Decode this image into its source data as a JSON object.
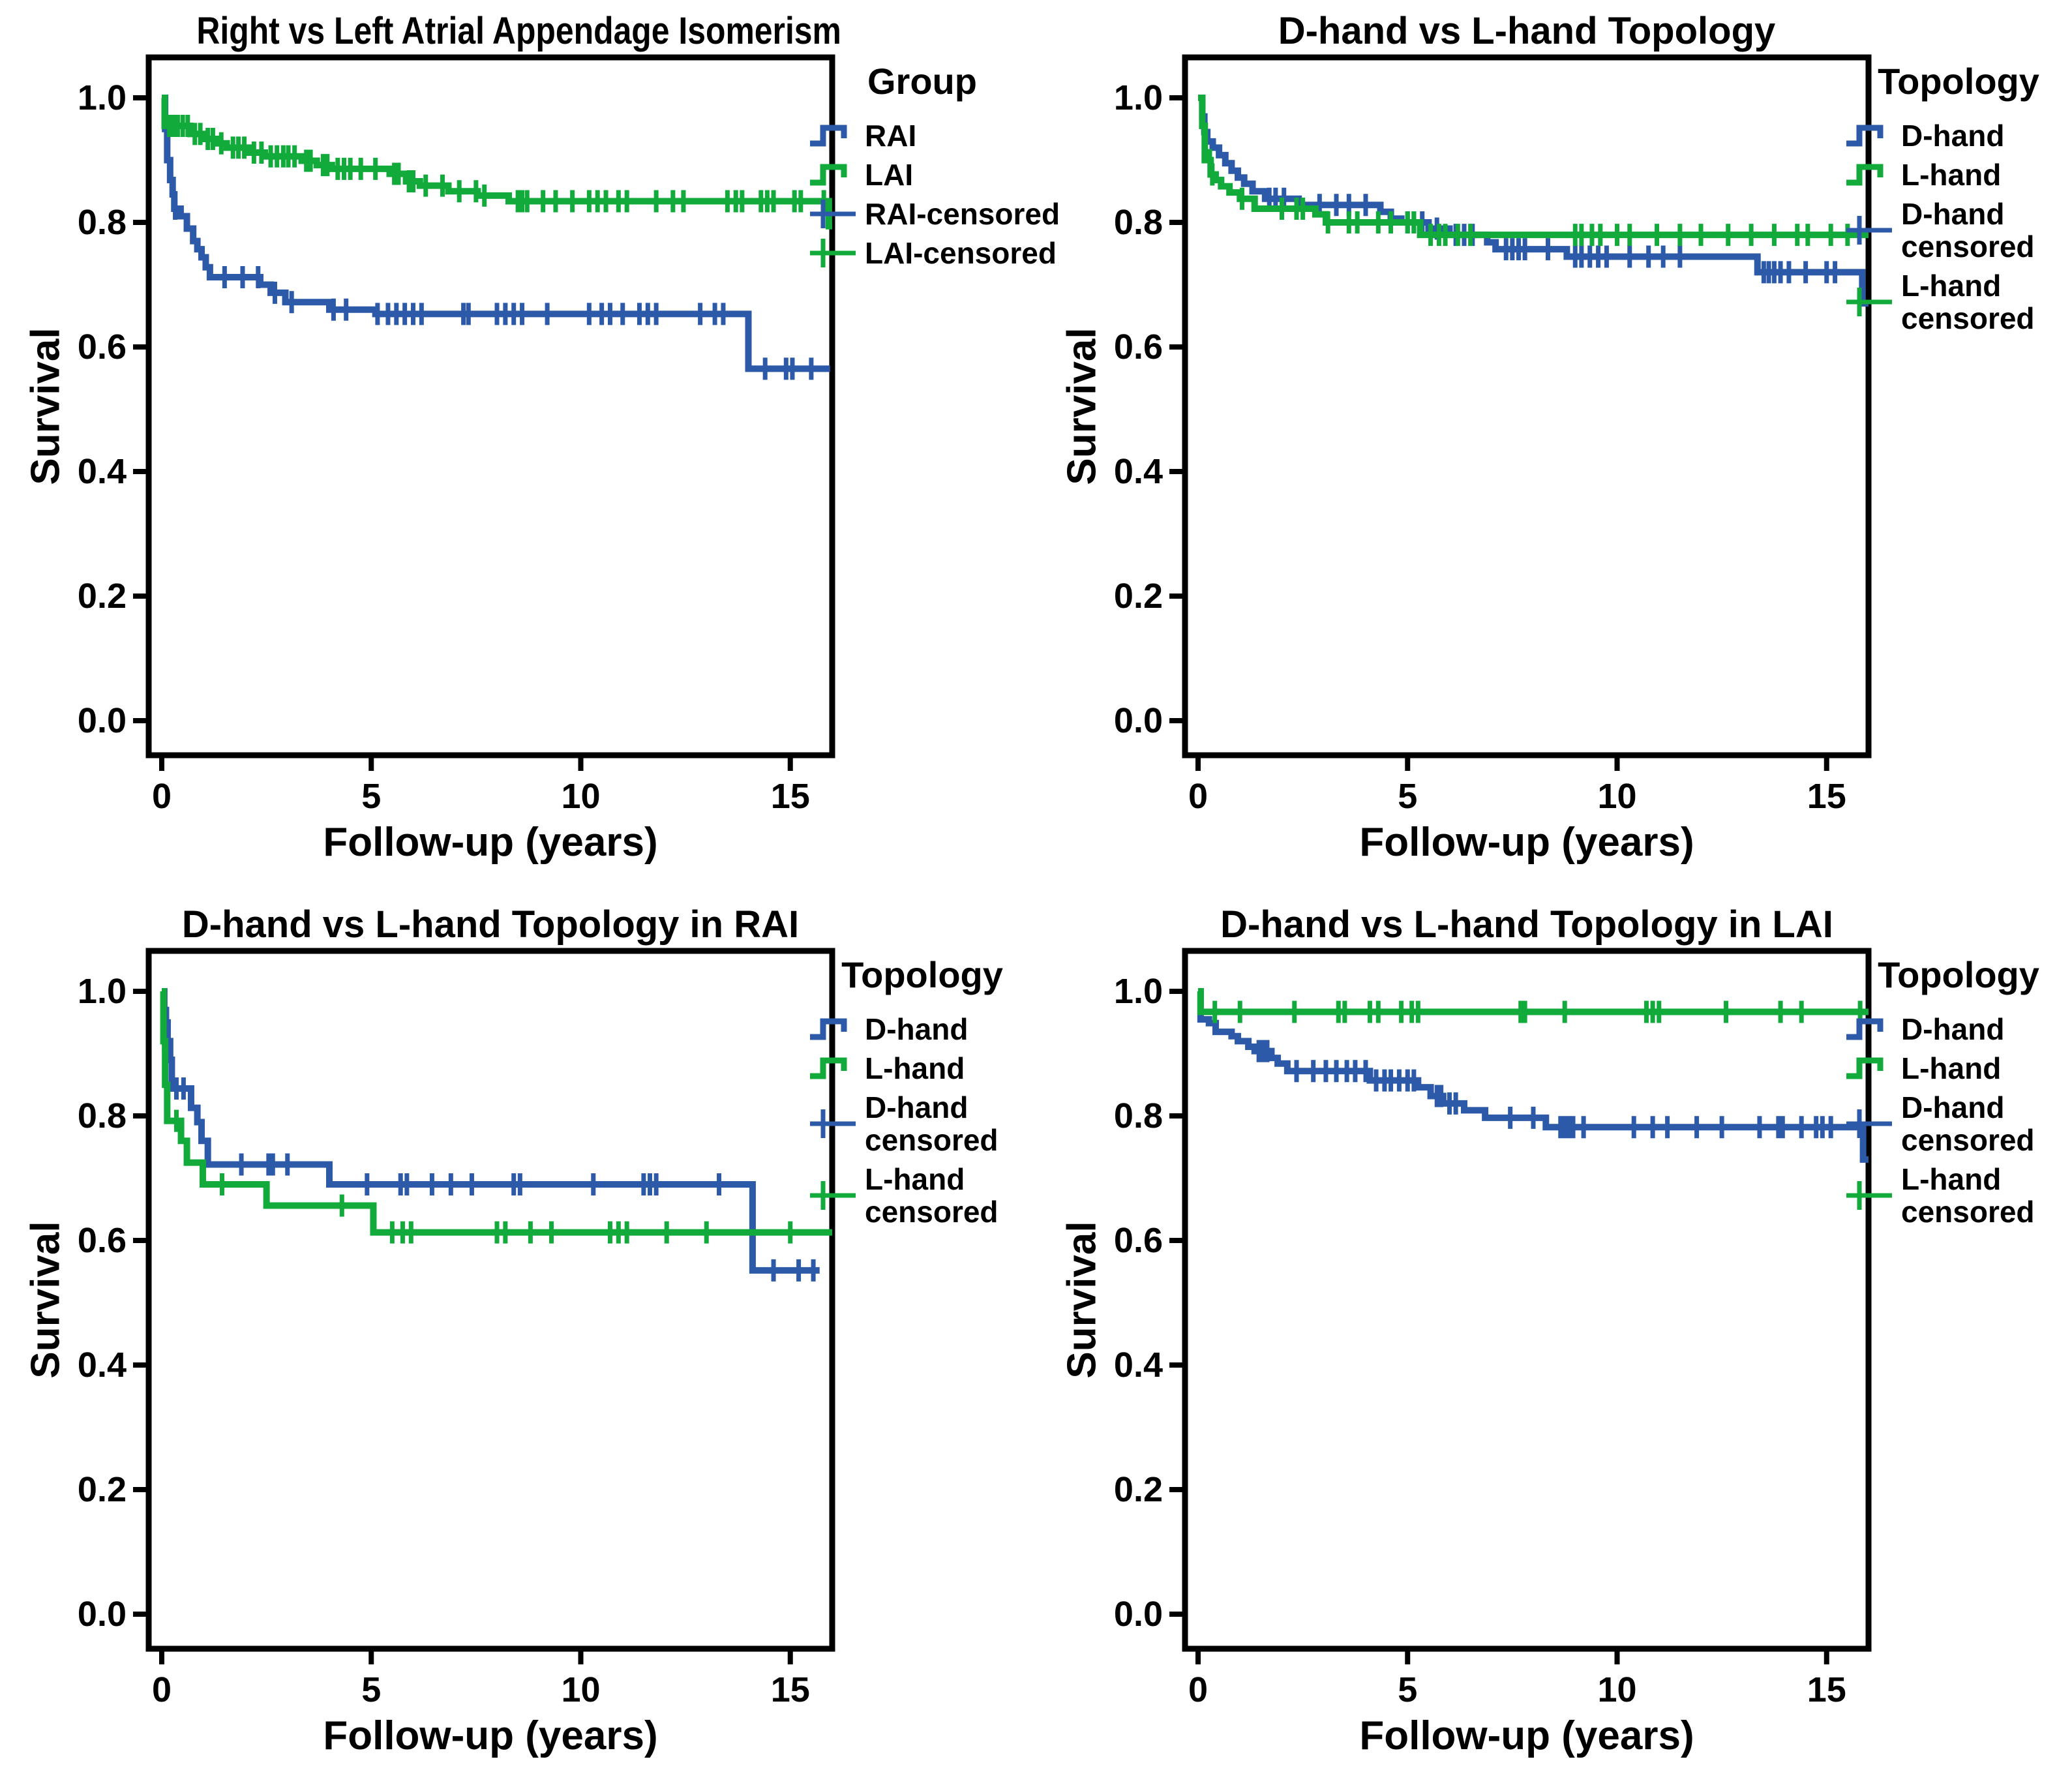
{
  "figure_background": "#ffffff",
  "colors": {
    "blue": "#2D5AA8",
    "green": "#11AA3B",
    "axis": "#000000"
  },
  "chart_data": [
    {
      "type": "line",
      "subtype": "kaplan-meier-step-survival",
      "title": "Right vs Left Atrial Appendage Isomerism",
      "xlabel": "Follow-up (years)",
      "ylabel": "Survival",
      "xlim": [
        0,
        16
      ],
      "ylim": [
        0,
        1.0
      ],
      "xticks": [
        0,
        5,
        10,
        15
      ],
      "xtick_labels": [
        "0",
        "5",
        "10",
        "15"
      ],
      "yticks": [
        1.0,
        0.8,
        0.6,
        0.4,
        0.2,
        0.0
      ],
      "ytick_labels": [
        "1.0",
        "0.8",
        "0.6",
        "0.4",
        "0.2",
        "0.0"
      ],
      "legend_title": "Group",
      "legend_position": "right",
      "grid": false,
      "legend": [
        {
          "label": "RAI",
          "label2": "",
          "marker": "step",
          "color": "#2D5AA8"
        },
        {
          "label": "LAI",
          "label2": "",
          "marker": "step",
          "color": "#11AA3B"
        },
        {
          "label": "RAI-censored",
          "label2": "",
          "marker": "censor",
          "color": "#2D5AA8"
        },
        {
          "label": "LAI-censored",
          "label2": "",
          "marker": "censor",
          "color": "#11AA3B"
        }
      ],
      "series": [
        {
          "name": "RAI",
          "color": "#2D5AA8",
          "x": [
            0,
            0.08,
            0.13,
            0.2,
            0.26,
            0.3,
            0.45,
            0.6,
            0.75,
            0.85,
            0.95,
            1.05,
            1.15,
            2.35,
            2.6,
            2.95,
            4.0,
            5.1,
            14.0
          ],
          "y": [
            1.0,
            0.95,
            0.9,
            0.868,
            0.845,
            0.822,
            0.81,
            0.79,
            0.77,
            0.757,
            0.744,
            0.728,
            0.712,
            0.7,
            0.687,
            0.672,
            0.66,
            0.653,
            0.565
          ],
          "end_x": 15.95,
          "censor_x": [
            0.32,
            1.5,
            1.93,
            2.3,
            2.7,
            3.1,
            4.1,
            4.4,
            5.15,
            5.4,
            5.6,
            5.8,
            6.0,
            6.2,
            7.2,
            7.32,
            8.0,
            8.2,
            8.4,
            8.6,
            9.2,
            10.2,
            10.5,
            10.7,
            11.0,
            11.4,
            11.6,
            11.8,
            12.85,
            13.2,
            13.4,
            14.4,
            14.9,
            15.05,
            15.5
          ]
        },
        {
          "name": "LAI",
          "color": "#11AA3B",
          "x": [
            0,
            0.07,
            0.68,
            1.02,
            1.31,
            1.55,
            2.1,
            2.46,
            3.34,
            3.7,
            4.06,
            5.44,
            5.83,
            6.16,
            6.84,
            7.54,
            8.28,
            15.92
          ],
          "y": [
            1.0,
            0.955,
            0.942,
            0.934,
            0.927,
            0.92,
            0.912,
            0.906,
            0.899,
            0.892,
            0.886,
            0.878,
            0.866,
            0.859,
            0.85,
            0.843,
            0.834,
            0.794
          ],
          "end_x": 16.0,
          "censor_x": [
            0.18,
            0.28,
            0.38,
            0.5,
            0.62,
            0.79,
            0.92,
            1.1,
            1.22,
            1.42,
            1.7,
            1.83,
            1.97,
            2.2,
            2.38,
            2.6,
            2.75,
            2.9,
            3.02,
            3.17,
            3.45,
            3.55,
            3.85,
            3.95,
            4.2,
            4.35,
            4.5,
            4.75,
            5.1,
            5.55,
            5.65,
            5.9,
            6.0,
            6.3,
            6.7,
            7.1,
            7.5,
            7.7,
            8.5,
            8.6,
            8.72,
            9.1,
            9.4,
            9.8,
            10.2,
            10.4,
            10.6,
            10.9,
            11.1,
            11.8,
            12.2,
            12.45,
            13.5,
            13.7,
            13.85,
            14.3,
            14.45,
            14.6,
            15.1,
            15.25,
            15.8
          ]
        }
      ]
    },
    {
      "type": "line",
      "subtype": "kaplan-meier-step-survival",
      "title": "D-hand vs L-hand Topology",
      "xlabel": "Follow-up (years)",
      "ylabel": "Survival",
      "xlim": [
        0,
        16
      ],
      "ylim": [
        0,
        1.0
      ],
      "xticks": [
        0,
        5,
        10,
        15
      ],
      "xtick_labels": [
        "0",
        "5",
        "10",
        "15"
      ],
      "yticks": [
        1.0,
        0.8,
        0.6,
        0.4,
        0.2,
        0.0
      ],
      "ytick_labels": [
        "1.0",
        "0.8",
        "0.6",
        "0.4",
        "0.2",
        "0.0"
      ],
      "legend_title": "Topology",
      "legend_position": "right",
      "grid": false,
      "legend": [
        {
          "label": "D-hand",
          "label2": "",
          "marker": "step",
          "color": "#2D5AA8"
        },
        {
          "label": "L-hand",
          "label2": "",
          "marker": "step",
          "color": "#11AA3B"
        },
        {
          "label": "D-hand",
          "label2": "censored",
          "marker": "censor",
          "color": "#2D5AA8"
        },
        {
          "label": "L-hand",
          "label2": "censored",
          "marker": "censor",
          "color": "#11AA3B"
        }
      ],
      "series": [
        {
          "name": "D-hand",
          "color": "#2D5AA8",
          "x": [
            0,
            0.1,
            0.15,
            0.22,
            0.35,
            0.5,
            0.65,
            0.8,
            0.95,
            1.1,
            1.3,
            1.6,
            2.4,
            4.35,
            4.6,
            4.85,
            5.5,
            6.0,
            6.9,
            7.1,
            8.8,
            13.35,
            15.85
          ],
          "y": [
            1.0,
            0.97,
            0.945,
            0.93,
            0.92,
            0.908,
            0.895,
            0.883,
            0.872,
            0.862,
            0.85,
            0.838,
            0.828,
            0.817,
            0.806,
            0.8,
            0.79,
            0.78,
            0.768,
            0.757,
            0.745,
            0.72,
            0.67
          ],
          "end_x": 16.0,
          "censor_x": [
            1.7,
            1.85,
            2.05,
            2.9,
            3.3,
            3.6,
            4.0,
            5.0,
            5.15,
            5.35,
            5.7,
            6.15,
            6.35,
            6.55,
            7.35,
            7.5,
            7.65,
            7.8,
            8.35,
            9.0,
            9.15,
            9.35,
            9.55,
            9.75,
            10.3,
            10.75,
            11.1,
            11.5,
            13.5,
            13.62,
            13.75,
            13.9,
            14.1,
            14.5,
            15.0,
            15.2
          ]
        },
        {
          "name": "L-hand",
          "color": "#11AA3B",
          "x": [
            0,
            0.1,
            0.16,
            0.3,
            0.42,
            0.55,
            0.75,
            1.0,
            1.35,
            2.8,
            3.05,
            5.3
          ],
          "y": [
            1.0,
            0.955,
            0.9,
            0.877,
            0.868,
            0.858,
            0.848,
            0.838,
            0.822,
            0.813,
            0.8,
            0.78
          ],
          "end_x": 16.0,
          "censor_x": [
            0.28,
            0.34,
            1.05,
            2.0,
            2.35,
            2.5,
            3.1,
            3.6,
            3.8,
            4.3,
            4.6,
            5.0,
            5.15,
            5.55,
            5.75,
            5.9,
            6.2,
            6.5,
            9.0,
            9.15,
            9.4,
            9.6,
            10.0,
            10.3,
            10.95,
            11.5,
            12.0,
            12.65,
            13.2,
            13.75,
            14.3,
            14.55,
            15.1,
            15.5
          ]
        }
      ]
    },
    {
      "type": "line",
      "subtype": "kaplan-meier-step-survival",
      "title": "D-hand vs L-hand Topology in RAI",
      "xlabel": "Follow-up (years)",
      "ylabel": "Survival",
      "xlim": [
        0,
        16
      ],
      "ylim": [
        0,
        1.0
      ],
      "xticks": [
        0,
        5,
        10,
        15
      ],
      "xtick_labels": [
        "0",
        "5",
        "10",
        "15"
      ],
      "yticks": [
        1.0,
        0.8,
        0.6,
        0.4,
        0.2,
        0.0
      ],
      "ytick_labels": [
        "1.0",
        "0.8",
        "0.6",
        "0.4",
        "0.2",
        "0.0"
      ],
      "legend_title": "Topology",
      "legend_position": "right",
      "grid": false,
      "legend": [
        {
          "label": "D-hand",
          "label2": "",
          "marker": "step",
          "color": "#2D5AA8"
        },
        {
          "label": "L-hand",
          "label2": "",
          "marker": "step",
          "color": "#11AA3B"
        },
        {
          "label": "D-hand",
          "label2": "censored",
          "marker": "censor",
          "color": "#2D5AA8"
        },
        {
          "label": "L-hand",
          "label2": "censored",
          "marker": "censor",
          "color": "#11AA3B"
        }
      ],
      "series": [
        {
          "name": "D-hand",
          "color": "#2D5AA8",
          "x": [
            0,
            0.06,
            0.1,
            0.14,
            0.2,
            0.24,
            0.7,
            0.85,
            0.95,
            1.1,
            4.0,
            14.1
          ],
          "y": [
            1.0,
            0.97,
            0.95,
            0.92,
            0.89,
            0.844,
            0.813,
            0.79,
            0.76,
            0.722,
            0.69,
            0.552
          ],
          "end_x": 15.7,
          "censor_x": [
            0.35,
            0.52,
            1.9,
            2.55,
            2.65,
            3.0,
            4.9,
            5.7,
            5.85,
            6.45,
            6.9,
            7.4,
            8.4,
            8.55,
            10.3,
            11.5,
            11.65,
            11.8,
            13.3,
            14.6,
            15.2,
            15.55
          ]
        },
        {
          "name": "L-hand",
          "color": "#11AA3B",
          "x": [
            0,
            0.04,
            0.08,
            0.13,
            0.46,
            0.6,
            0.98,
            2.5,
            5.05
          ],
          "y": [
            1.0,
            0.92,
            0.85,
            0.792,
            0.76,
            0.725,
            0.69,
            0.656,
            0.613
          ],
          "end_x": 16.0,
          "censor_x": [
            0.06,
            0.35,
            1.44,
            4.3,
            5.5,
            5.75,
            5.95,
            8.0,
            8.2,
            8.8,
            9.3,
            10.7,
            10.9,
            11.1,
            12.05,
            13.0,
            15.0
          ]
        }
      ]
    },
    {
      "type": "line",
      "subtype": "kaplan-meier-step-survival",
      "title": "D-hand vs L-hand Topology in LAI",
      "xlabel": "Follow-up (years)",
      "ylabel": "Survival",
      "xlim": [
        0,
        16
      ],
      "ylim": [
        0,
        1.0
      ],
      "xticks": [
        0,
        5,
        10,
        15
      ],
      "xtick_labels": [
        "0",
        "5",
        "10",
        "15"
      ],
      "yticks": [
        1.0,
        0.8,
        0.6,
        0.4,
        0.2,
        0.0
      ],
      "ytick_labels": [
        "1.0",
        "0.8",
        "0.6",
        "0.4",
        "0.2",
        "0.0"
      ],
      "legend_title": "Topology",
      "legend_position": "right",
      "grid": false,
      "legend": [
        {
          "label": "D-hand",
          "label2": "",
          "marker": "step",
          "color": "#2D5AA8"
        },
        {
          "label": "L-hand",
          "label2": "",
          "marker": "step",
          "color": "#11AA3B"
        },
        {
          "label": "D-hand",
          "label2": "censored",
          "marker": "censor",
          "color": "#2D5AA8"
        },
        {
          "label": "L-hand",
          "label2": "censored",
          "marker": "censor",
          "color": "#11AA3B"
        }
      ],
      "series": [
        {
          "name": "D-hand",
          "color": "#2D5AA8",
          "x": [
            0,
            0.06,
            0.26,
            0.42,
            0.8,
            0.95,
            1.2,
            1.35,
            1.75,
            1.9,
            2.13,
            4.1,
            5.25,
            5.55,
            5.85,
            6.35,
            6.85,
            8.3,
            15.87
          ],
          "y": [
            1.0,
            0.955,
            0.949,
            0.935,
            0.928,
            0.92,
            0.911,
            0.904,
            0.893,
            0.884,
            0.872,
            0.857,
            0.846,
            0.832,
            0.82,
            0.809,
            0.797,
            0.782,
            0.73
          ],
          "end_x": 16.0,
          "censor_x": [
            1.45,
            1.55,
            1.65,
            2.35,
            2.75,
            3.05,
            3.3,
            3.55,
            3.75,
            4.0,
            4.25,
            4.45,
            4.6,
            4.8,
            5.0,
            5.15,
            5.7,
            5.8,
            6.0,
            6.15,
            7.45,
            8.0,
            8.65,
            8.75,
            8.85,
            8.95,
            9.2,
            10.4,
            10.85,
            11.2,
            11.9,
            12.5,
            13.4,
            13.85,
            13.95,
            14.4,
            14.75,
            14.9,
            15.1
          ]
        },
        {
          "name": "L-hand",
          "color": "#11AA3B",
          "x": [
            0,
            0.06
          ],
          "y": [
            1.0,
            0.967
          ],
          "end_x": 16.0,
          "censor_x": [
            0.4,
            1.0,
            2.3,
            3.35,
            3.5,
            4.1,
            4.3,
            4.85,
            5.1,
            5.25,
            7.7,
            7.8,
            8.75,
            10.7,
            10.85,
            11.0,
            12.6,
            13.9,
            14.4,
            15.8
          ]
        }
      ]
    }
  ]
}
